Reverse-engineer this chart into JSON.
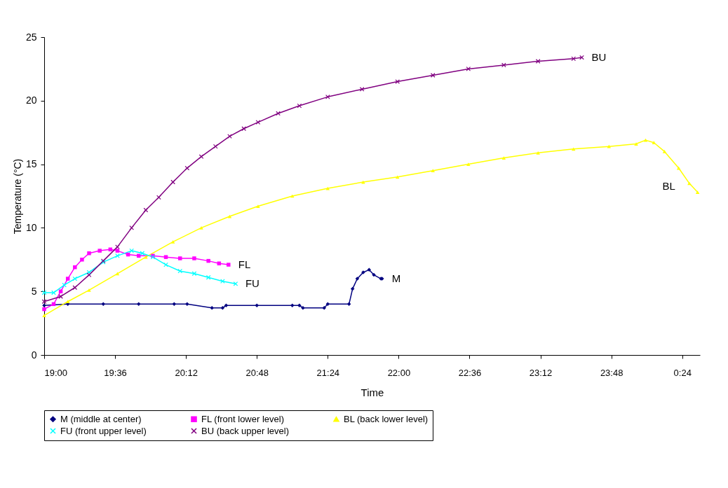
{
  "chart_data": {
    "type": "line",
    "xlabel": "Time",
    "ylabel": "Temperature (°C)",
    "xlim": [
      19,
      24.55
    ],
    "xticks": [
      {
        "value": 19,
        "label": "19:00"
      },
      {
        "value": 19.6,
        "label": "19:36"
      },
      {
        "value": 20.2,
        "label": "20:12"
      },
      {
        "value": 20.8,
        "label": "20:48"
      },
      {
        "value": 21.4,
        "label": "21:24"
      },
      {
        "value": 22,
        "label": "22:00"
      },
      {
        "value": 22.6,
        "label": "22:36"
      },
      {
        "value": 23.2,
        "label": "23:12"
      },
      {
        "value": 23.8,
        "label": "23:48"
      },
      {
        "value": 24.4,
        "label": "0:24"
      }
    ],
    "ylim": [
      0,
      25
    ],
    "yticks": [
      0,
      5,
      10,
      15,
      20,
      25
    ],
    "grid": false,
    "legend": "bottom",
    "series": [
      {
        "name": "M (middle at center)",
        "color": "#000080",
        "marker": "diamond",
        "x": [
          19,
          19.2,
          19.5,
          19.8,
          20.1,
          20.21,
          20.42,
          20.51,
          20.54,
          20.8,
          21.1,
          21.16,
          21.19,
          21.37,
          21.4,
          21.58,
          21.61,
          21.65,
          21.7,
          21.75,
          21.79,
          21.85,
          21.86
        ],
        "values": [
          3.9,
          4.0,
          4.0,
          4.0,
          4.0,
          4.0,
          3.7,
          3.7,
          3.9,
          3.9,
          3.9,
          3.9,
          3.7,
          3.7,
          4.0,
          4.0,
          5.2,
          6.0,
          6.5,
          6.7,
          6.3,
          6.0,
          6.0
        ]
      },
      {
        "name": "FL (front lower level)",
        "color": "#ff00ff",
        "marker": "square",
        "x": [
          19,
          19.08,
          19.14,
          19.2,
          19.26,
          19.32,
          19.38,
          19.47,
          19.56,
          19.62,
          19.71,
          19.8,
          19.92,
          20.03,
          20.15,
          20.27,
          20.39,
          20.48,
          20.56
        ],
        "values": [
          3.6,
          4.0,
          5.0,
          6.0,
          6.9,
          7.5,
          8.0,
          8.2,
          8.3,
          8.2,
          7.9,
          7.8,
          7.8,
          7.7,
          7.6,
          7.6,
          7.4,
          7.2,
          7.1
        ]
      },
      {
        "name": "BL (back lower level)",
        "color": "#ffff00",
        "marker": "triangle",
        "x": [
          19,
          19.2,
          19.38,
          19.62,
          19.86,
          20.09,
          20.33,
          20.57,
          20.81,
          21.1,
          21.4,
          21.7,
          21.99,
          22.29,
          22.59,
          22.89,
          23.18,
          23.48,
          23.78,
          24.01,
          24.09,
          24.16,
          24.25,
          24.37,
          24.46,
          24.53
        ],
        "values": [
          3.1,
          4.2,
          5.1,
          6.4,
          7.7,
          8.9,
          10.0,
          10.9,
          11.7,
          12.5,
          13.1,
          13.6,
          14.0,
          14.5,
          15.0,
          15.5,
          15.9,
          16.2,
          16.4,
          16.6,
          16.9,
          16.7,
          16.0,
          14.7,
          13.5,
          12.8
        ]
      },
      {
        "name": "FU (front upper level)",
        "color": "#00ffff",
        "marker": "cross",
        "x": [
          19,
          19.08,
          19.17,
          19.26,
          19.38,
          19.5,
          19.62,
          19.74,
          19.83,
          19.92,
          20.03,
          20.15,
          20.27,
          20.39,
          20.51,
          20.62
        ],
        "values": [
          4.9,
          4.9,
          5.5,
          6.0,
          6.5,
          7.3,
          7.8,
          8.2,
          8.0,
          7.7,
          7.1,
          6.6,
          6.4,
          6.1,
          5.8,
          5.6
        ]
      },
      {
        "name": "BU (back upper level)",
        "color": "#800080",
        "marker": "cross",
        "x": [
          19,
          19.14,
          19.26,
          19.38,
          19.5,
          19.62,
          19.74,
          19.86,
          19.97,
          20.09,
          20.21,
          20.33,
          20.45,
          20.57,
          20.69,
          20.81,
          20.98,
          21.16,
          21.4,
          21.69,
          21.99,
          22.29,
          22.59,
          22.89,
          23.18,
          23.48,
          23.55
        ],
        "values": [
          4.2,
          4.6,
          5.3,
          6.3,
          7.4,
          8.5,
          10.0,
          11.4,
          12.4,
          13.6,
          14.7,
          15.6,
          16.4,
          17.2,
          17.8,
          18.3,
          19.0,
          19.6,
          20.3,
          20.9,
          21.5,
          22.0,
          22.5,
          22.8,
          23.1,
          23.3,
          23.4
        ]
      }
    ],
    "annotations": [
      {
        "text": "FL",
        "x": 20.56,
        "y": 7.1
      },
      {
        "text": "FU",
        "x": 20.62,
        "y": 5.6
      },
      {
        "text": "M",
        "x": 21.86,
        "y": 6.0
      },
      {
        "text": "BU",
        "x": 23.55,
        "y": 23.4
      },
      {
        "text": "BL",
        "x": 24.46,
        "y": 13.5
      }
    ]
  }
}
